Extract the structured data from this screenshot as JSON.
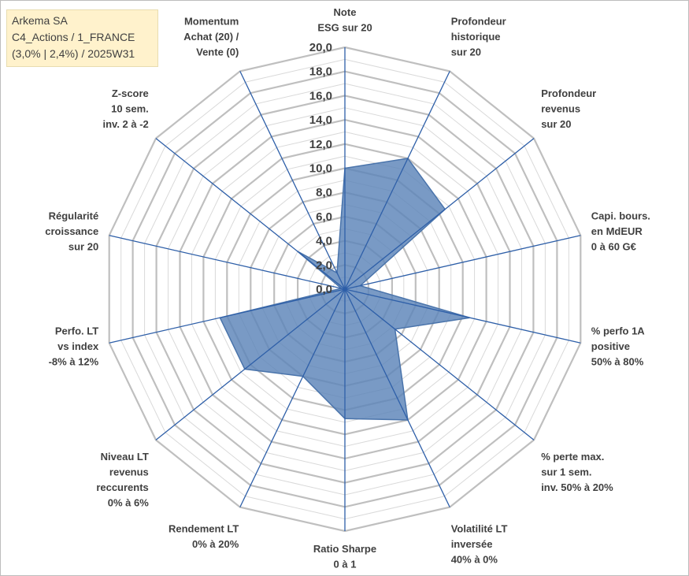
{
  "title_lines": [
    "Arkema SA",
    "C4_Actions / 1_FRANCE",
    "(3,0% | 2,4%) / 2025W31"
  ],
  "chart_data": {
    "type": "radar",
    "r_min": 0,
    "r_max": 20,
    "tick_values": [
      0,
      2,
      4,
      6,
      8,
      10,
      12,
      14,
      16,
      18,
      20
    ],
    "tick_labels": [
      "0,0",
      "2,0",
      "4,0",
      "6,0",
      "8,0",
      "10,0",
      "12,0",
      "14,0",
      "16,0",
      "18,0",
      "20,0"
    ],
    "axes": [
      {
        "label": [
          "Note",
          "ESG sur 20"
        ],
        "value": 10.0
      },
      {
        "label": [
          "Profondeur",
          "historique",
          "sur 20"
        ],
        "value": 12.0
      },
      {
        "label": [
          "Profondeur",
          "revenus",
          "sur 20"
        ],
        "value": 10.6
      },
      {
        "label": [
          "Capi. bours.",
          "en MdEUR",
          "0 à 60 G€"
        ],
        "value": 1.3
      },
      {
        "label": [
          "% perfo 1A",
          "positive",
          "50% à 80%"
        ],
        "value": 10.6
      },
      {
        "label": [
          "% perte max.",
          "sur 1 sem.",
          "inv. 50% à 20%"
        ],
        "value": 5.3
      },
      {
        "label": [
          "Volatilité LT",
          "inversée",
          "40% à 0%"
        ],
        "value": 12.0
      },
      {
        "label": [
          "Ratio Sharpe",
          "0 à 1"
        ],
        "value": 10.7
      },
      {
        "label": [
          "Rendement LT",
          "0% à 20%"
        ],
        "value": 8.0
      },
      {
        "label": [
          "Niveau LT",
          "revenus",
          "reccurents",
          "0% à 6%"
        ],
        "value": 10.6
      },
      {
        "label": [
          "Perfo. LT",
          "vs index",
          "-8% à 12%"
        ],
        "value": 10.6
      },
      {
        "label": [
          "Régularité",
          "croissance",
          "sur 20"
        ],
        "value": 0.3
      },
      {
        "label": [
          "Z-score",
          "10 sem.",
          "inv. 2 à -2"
        ],
        "value": 5.0
      },
      {
        "label": [
          "Momentum",
          "Achat (20) /",
          "Vente (0)"
        ],
        "value": 1.5
      }
    ],
    "series": [
      {
        "values": [
          10.0,
          12.0,
          10.6,
          1.3,
          10.6,
          5.3,
          12.0,
          10.7,
          8.0,
          10.6,
          10.6,
          0.3,
          5.0,
          1.5
        ]
      }
    ],
    "colors": {
      "fill": "#5b84b8",
      "fill_opacity": 0.82,
      "series_stroke": "#4a74ab",
      "axis": "#2e5fa8",
      "grid_major": "#bfbfbf",
      "grid_minor": "#d9d9d9"
    },
    "grid": true,
    "legend": "none"
  }
}
